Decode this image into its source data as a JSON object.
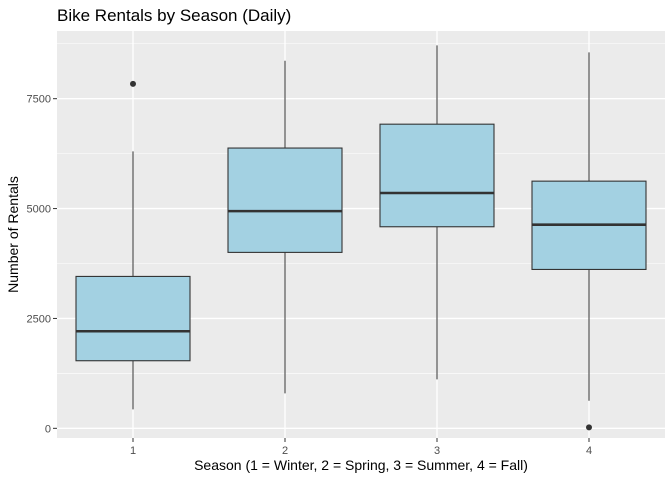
{
  "chart_data": {
    "type": "box",
    "title": "Bike Rentals by Season (Daily)",
    "xlabel": "Season (1 = Winter, 2 = Spring, 3 = Summer, 4 = Fall)",
    "ylabel": "Number of Rentals",
    "categories": [
      "1",
      "2",
      "3",
      "4"
    ],
    "yticks": [
      0,
      2500,
      5000,
      7500
    ],
    "ytick_labels": [
      "0",
      "2500",
      "5000",
      "7500"
    ],
    "ylim": [
      -220,
      9040
    ],
    "grid": true,
    "boxes": [
      {
        "category": "1",
        "whisker_low": 431,
        "q1": 1538,
        "median": 2209,
        "q3": 3456,
        "whisker_high": 6300,
        "outliers": [
          7836
        ]
      },
      {
        "category": "2",
        "whisker_low": 795,
        "q1": 4003,
        "median": 4942,
        "q3": 6377,
        "whisker_high": 8362,
        "outliers": []
      },
      {
        "category": "3",
        "whisker_low": 1115,
        "q1": 4586,
        "median": 5354,
        "q3": 6920,
        "whisker_high": 8714,
        "outliers": []
      },
      {
        "category": "4",
        "whisker_low": 627,
        "q1": 3615,
        "median": 4634,
        "q3": 5624,
        "whisker_high": 8555,
        "outliers": [
          22
        ]
      }
    ],
    "colors": {
      "box_fill": "#a3d1e2",
      "box_stroke": "#333333",
      "panel_background": "#ebebeb",
      "grid": "#ffffff",
      "outlier": "#333333"
    }
  }
}
